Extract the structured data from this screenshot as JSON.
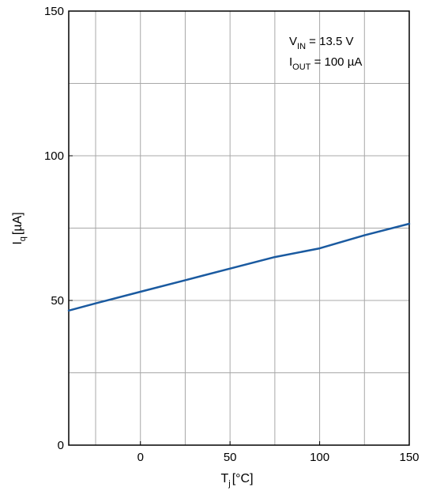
{
  "chart_data": {
    "type": "line",
    "title": "",
    "xlabel": {
      "main": "T",
      "sub": "j",
      "unit": "[°C]"
    },
    "ylabel": {
      "main": "I",
      "sub": "q",
      "unit": "[µA]"
    },
    "xlim": [
      -40,
      150
    ],
    "ylim": [
      0,
      150
    ],
    "x_ticks": [
      0,
      50,
      100,
      150
    ],
    "y_ticks": [
      0,
      50,
      100,
      150
    ],
    "x_gridlines": [
      -25,
      0,
      25,
      50,
      75,
      100,
      125
    ],
    "y_gridlines": [
      25,
      50,
      75,
      100,
      125
    ],
    "grid": true,
    "line_color": "#1a5aa0",
    "annotations": [
      {
        "main": "V",
        "sub": "IN",
        "rest": " = 13.5 V"
      },
      {
        "main": "I",
        "sub": "OUT",
        "rest": " = 100 µA"
      }
    ],
    "series": [
      {
        "x": [
          -40,
          -25,
          0,
          25,
          50,
          75,
          100,
          125,
          150
        ],
        "y": [
          46.5,
          49,
          53,
          57,
          61,
          65,
          68,
          72.5,
          76.5
        ]
      }
    ]
  }
}
